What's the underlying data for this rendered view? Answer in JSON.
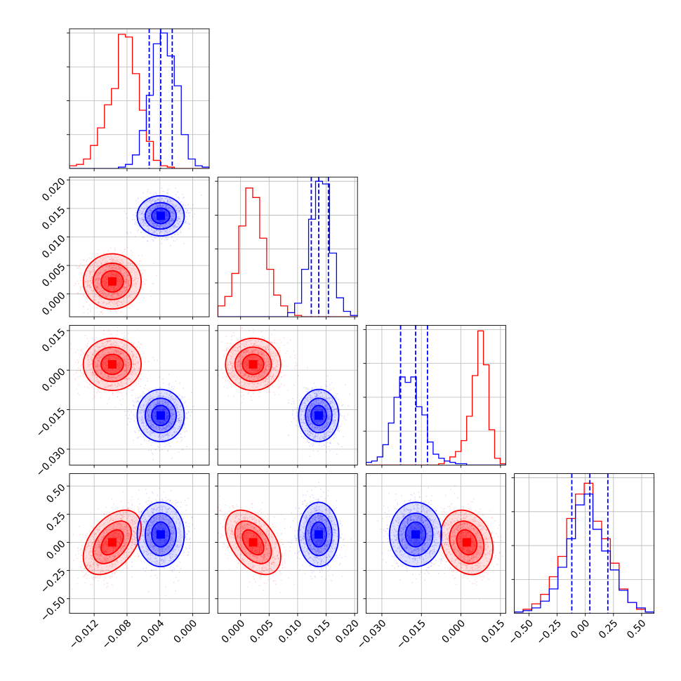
{
  "chart_data": {
    "type": "corner",
    "n_params": 4,
    "series": [
      {
        "name": "",
        "color": "#ff0000",
        "params": [
          {
            "mean": -0.0098,
            "std": 0.0016
          },
          {
            "mean": 0.0022,
            "std": 0.0022
          },
          {
            "mean": 0.0022,
            "std": 0.0045
          },
          {
            "mean": 0.0,
            "std": 0.13
          }
        ],
        "correlations": {
          "0-3": 0.45,
          "1-3": -0.45,
          "2-3": -0.2
        },
        "hist_counts": [
          [
            0.02,
            0.03,
            0.07,
            0.17,
            0.3,
            0.47,
            0.59,
            0.99,
            0.97,
            0.7,
            0.43,
            0.2,
            0.06,
            0.02,
            0.01,
            0,
            0,
            0,
            0,
            0
          ],
          [
            0.08,
            0.15,
            0.32,
            0.67,
            0.95,
            0.88,
            0.58,
            0.35,
            0.16,
            0.08,
            0.03,
            0.01,
            0,
            0,
            0,
            0,
            0,
            0,
            0,
            0
          ],
          [
            0,
            0,
            0,
            0,
            0,
            0,
            0,
            0,
            0,
            0,
            0,
            0,
            0,
            0.01,
            0.03,
            0.06,
            0.1,
            0.18,
            0.36,
            0.66,
            0.99,
            0.74,
            0.26,
            0.05,
            0.01
          ],
          [
            0.01,
            0.03,
            0.07,
            0.14,
            0.27,
            0.42,
            0.7,
            0.88,
            0.96,
            0.68,
            0.55,
            0.37,
            0.18,
            0.08,
            0.03,
            0.01
          ]
        ]
      },
      {
        "name": "",
        "color": "#0000ff",
        "params": [
          {
            "mean": -0.0039,
            "std": 0.0013
          },
          {
            "mean": 0.0137,
            "std": 0.0016
          },
          {
            "mean": -0.0172,
            "std": 0.0045
          },
          {
            "mean": 0.07,
            "std": 0.13
          }
        ],
        "correlations": {},
        "hist_counts": [
          [
            0,
            0,
            0,
            0,
            0,
            0,
            0,
            0.01,
            0.03,
            0.1,
            0.28,
            0.54,
            0.92,
            1.0,
            0.83,
            0.61,
            0.25,
            0.07,
            0.02,
            0.01
          ],
          [
            0,
            0,
            0,
            0,
            0,
            0,
            0,
            0,
            0,
            0,
            0.03,
            0.1,
            0.35,
            0.72,
            1.0,
            0.98,
            0.47,
            0.14,
            0.04,
            0.01
          ],
          [
            0.02,
            0.03,
            0.06,
            0.15,
            0.31,
            0.5,
            0.65,
            0.61,
            0.65,
            0.43,
            0.37,
            0.17,
            0.08,
            0.05,
            0.03,
            0.02,
            0.01,
            0.01,
            0,
            0,
            0,
            0,
            0,
            0,
            0
          ],
          [
            0.01,
            0.02,
            0.04,
            0.09,
            0.18,
            0.34,
            0.55,
            0.8,
            0.88,
            0.62,
            0.46,
            0.32,
            0.17,
            0.08,
            0.04,
            0.01
          ]
        ],
        "quantiles": [
          [
            -0.0053,
            -0.0039,
            -0.0025
          ],
          [
            0.0124,
            0.0137,
            0.0154
          ],
          [
            -0.0229,
            -0.0172,
            -0.0127
          ],
          [
            -0.12,
            0.04,
            0.2
          ]
        ]
      }
    ],
    "axes": [
      {
        "range": [
          -0.015,
          0.002
        ],
        "ticks": [
          "−0.012",
          "−0.008",
          "−0.004",
          "0.000"
        ],
        "tick_values": [
          -0.012,
          -0.008,
          -0.004,
          0.0
        ]
      },
      {
        "range": [
          -0.004,
          0.0205
        ],
        "ticks": [
          "0.000",
          "0.005",
          "0.010",
          "0.015",
          "0.020"
        ],
        "tick_values": [
          0.0,
          0.005,
          0.01,
          0.015,
          0.02
        ]
      },
      {
        "range": [
          -0.036,
          0.017
        ],
        "ticks_x": [
          "−0.030",
          "−0.015",
          "0.000",
          "0.015"
        ],
        "ticks_y": [
          "−0.030",
          "−0.015",
          "0.000",
          "0.015"
        ],
        "tick_values": [
          -0.03,
          -0.015,
          0.0,
          0.015
        ]
      },
      {
        "range": [
          -0.63,
          0.61
        ],
        "ticks_x": [
          "−0.50",
          "−0.25",
          "0.00",
          "0.25",
          "0.50"
        ],
        "ticks_y": [
          "−0.50",
          "−0.25",
          "0.00",
          "0.25",
          "0.50"
        ],
        "tick_values": [
          -0.5,
          -0.25,
          0.0,
          0.25,
          0.5
        ]
      }
    ],
    "diag_ytick_fractions": [
      0.25,
      0.5,
      0.75,
      1.0
    ],
    "hist_bins": [
      20,
      20,
      25,
      16
    ],
    "grid": true,
    "xlabel": "",
    "ylabel": "",
    "title": ""
  }
}
